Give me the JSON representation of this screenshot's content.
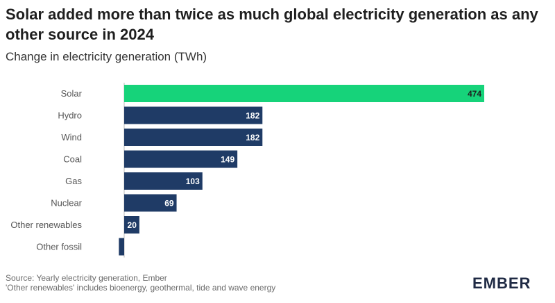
{
  "title": "Solar added more than twice as much global electricity generation as any other source in 2024",
  "subtitle": "Change in electricity generation (TWh)",
  "footer": {
    "source": "Source: Yearly electricity generation, Ember",
    "note": "'Other renewables' includes bioenergy, geothermal, tide and wave energy"
  },
  "logo": "EMBER",
  "colors": {
    "highlight": "#16d37a",
    "bar": "#1f3b66"
  },
  "chart_data": {
    "type": "bar",
    "orientation": "horizontal",
    "title": "Solar added more than twice as much global electricity generation as any other source in 2024",
    "subtitle": "Change in electricity generation (TWh)",
    "categories": [
      "Solar",
      "Hydro",
      "Wind",
      "Coal",
      "Gas",
      "Nuclear",
      "Other renewables",
      "Other fossil"
    ],
    "values": [
      474,
      182,
      182,
      149,
      103,
      69,
      20,
      -7
    ],
    "value_labels": [
      "474",
      "182",
      "182",
      "149",
      "103",
      "69",
      "20",
      ""
    ],
    "highlight_category": "Solar",
    "xlim": [
      -10,
      480
    ],
    "grid": false,
    "legend": "none"
  }
}
